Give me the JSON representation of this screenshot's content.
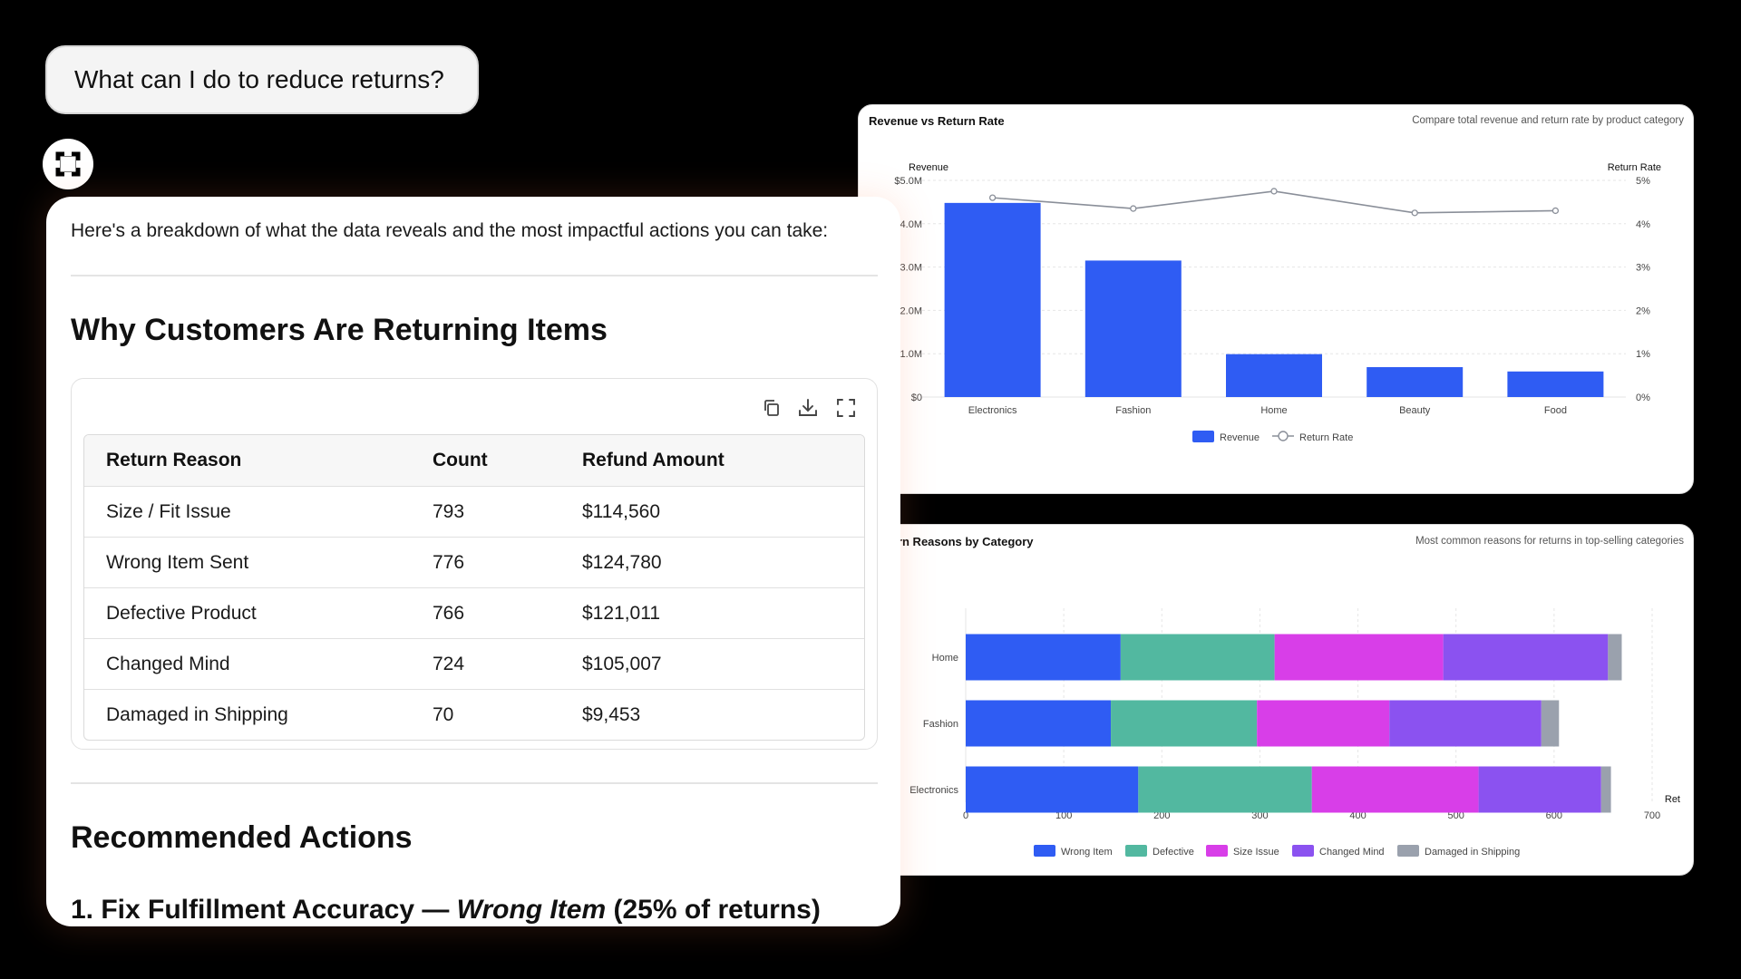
{
  "user_message": "What can I do to reduce returns?",
  "assistant": {
    "intro": "Here's a breakdown of what the data reveals and the most impactful actions you can take:",
    "section1_title": "Why Customers Are Returning Items",
    "table": {
      "headers": [
        "Return Reason",
        "Count",
        "Refund Amount"
      ],
      "rows": [
        {
          "reason": "Size / Fit Issue",
          "count": "793",
          "refund": "$114,560"
        },
        {
          "reason": "Wrong Item Sent",
          "count": "776",
          "refund": "$124,780"
        },
        {
          "reason": "Defective Product",
          "count": "766",
          "refund": "$121,011"
        },
        {
          "reason": "Changed Mind",
          "count": "724",
          "refund": "$105,007"
        },
        {
          "reason": "Damaged in Shipping",
          "count": "70",
          "refund": "$9,453"
        }
      ],
      "tools": [
        "copy-icon",
        "download-icon",
        "fullscreen-icon"
      ]
    },
    "section2_title": "Recommended Actions",
    "action1": {
      "prefix": "1. Fix Fulfillment Accuracy — ",
      "emphasis": "Wrong Item",
      "suffix": " (25% of returns)"
    }
  },
  "colors": {
    "revenue": "#2f5cf3",
    "wrong_item": "#2f5cf3",
    "defective": "#52b8a0",
    "size_issue": "#d83ee8",
    "changed_mind": "#8b52f0",
    "damaged": "#9aa1ad",
    "line": "#8a8f99"
  },
  "chart_data": [
    {
      "type": "bar",
      "title": "Revenue vs Return Rate",
      "subtitle": "Compare total revenue and return rate by product category",
      "ylabel": "Revenue",
      "y2label": "Return Rate",
      "categories": [
        "Electronics",
        "Fashion",
        "Home",
        "Beauty",
        "Food"
      ],
      "y_ticks": [
        "$0",
        "1.0M",
        "2.0M",
        "3.0M",
        "4.0M",
        "$5.0M"
      ],
      "y2_ticks": [
        "0%",
        "1%",
        "2%",
        "3%",
        "4%",
        "5%"
      ],
      "ylim": [
        0,
        5000000
      ],
      "y2lim": [
        0,
        5
      ],
      "series": [
        {
          "name": "Revenue",
          "type": "bar",
          "values": [
            4480000,
            3150000,
            990000,
            690000,
            590000
          ]
        },
        {
          "name": "Return Rate",
          "type": "line",
          "values": [
            4.6,
            4.35,
            4.75,
            4.25,
            4.3
          ]
        }
      ],
      "legend": "bottom",
      "grid": true
    },
    {
      "type": "bar",
      "orientation": "horizontal",
      "stacked": true,
      "title": "urn Reasons by Category",
      "subtitle": "Most common reasons for returns in top-selling categories",
      "categories": [
        "Home",
        "Fashion",
        "Electronics"
      ],
      "x_ticks": [
        "0",
        "100",
        "200",
        "300",
        "400",
        "500",
        "600",
        "700"
      ],
      "xlim": [
        0,
        700
      ],
      "xlabel": "Ret",
      "series": [
        {
          "name": "Wrong Item",
          "values": [
            158,
            148,
            176
          ]
        },
        {
          "name": "Defective",
          "values": [
            157,
            149,
            177
          ]
        },
        {
          "name": "Size Issue",
          "values": [
            172,
            135,
            170
          ]
        },
        {
          "name": "Changed Mind",
          "values": [
            168,
            155,
            125
          ]
        },
        {
          "name": "Damaged in Shipping",
          "values": [
            14,
            18,
            10
          ]
        }
      ],
      "legend": "bottom",
      "grid": true
    }
  ]
}
